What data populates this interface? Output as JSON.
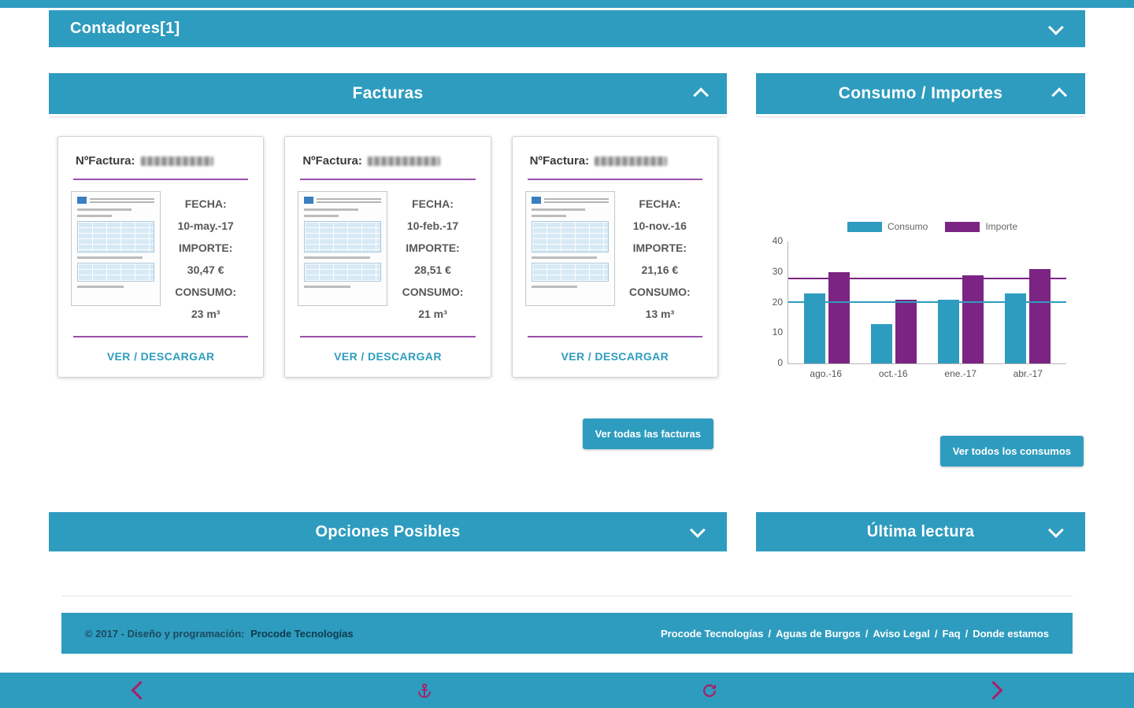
{
  "theme": {
    "teal": "#2e9cbf",
    "purple": "#7b2483",
    "rule_purple": "#9b4fad",
    "nav_icon_color": "#aa1e64"
  },
  "contadores_bar": {
    "title": "Contadores[1]"
  },
  "facturas": {
    "title": "Facturas",
    "card_labels": {
      "factura": "NºFactura:",
      "fecha": "FECHA:",
      "importe": "IMPORTE:",
      "consumo": "CONSUMO:",
      "link": "VER / DESCARGAR"
    },
    "cards": [
      {
        "fecha": "10-may.-17",
        "importe": "30,47 €",
        "consumo": "23 m³"
      },
      {
        "fecha": "10-feb.-17",
        "importe": "28,51 €",
        "consumo": "21 m³"
      },
      {
        "fecha": "10-nov.-16",
        "importe": "21,16 €",
        "consumo": "13 m³"
      }
    ],
    "view_all_button": "Ver todas las facturas"
  },
  "consumo_panel": {
    "title": "Consumo / Importes",
    "view_all_button": "Ver todos los consumos"
  },
  "chart_data": {
    "type": "bar",
    "categories": [
      "ago.-16",
      "oct.-16",
      "ene.-17",
      "abr.-17"
    ],
    "series": [
      {
        "name": "Consumo",
        "color": "#2e9cbf",
        "values": [
          23,
          13,
          21,
          23
        ]
      },
      {
        "name": "Importe",
        "color": "#7b2483",
        "values": [
          30,
          21,
          29,
          31
        ]
      }
    ],
    "ylim": [
      0,
      40
    ],
    "yticks": [
      0,
      10,
      20,
      30,
      40
    ],
    "average_lines": [
      {
        "series": "Importe",
        "value": 27.5,
        "color": "#7b2483"
      },
      {
        "series": "Consumo",
        "value": 20,
        "color": "#2e9cbf"
      }
    ],
    "legend_position": "top",
    "grid": false
  },
  "collapsed_sections": {
    "opciones": {
      "title": "Opciones Posibles"
    },
    "ultima_lectura": {
      "title": "Última lectura"
    }
  },
  "footer": {
    "copyright_prefix": "© 2017 - Diseño y programación:",
    "copyright_link": "Procode Tecnologías",
    "links": [
      "Procode Tecnologías",
      "Aguas de Burgos",
      "Aviso Legal",
      "Faq",
      "Donde estamos"
    ],
    "separator": "/"
  },
  "bottom_nav": {
    "icons": [
      "back",
      "anchor",
      "refresh",
      "forward"
    ]
  }
}
